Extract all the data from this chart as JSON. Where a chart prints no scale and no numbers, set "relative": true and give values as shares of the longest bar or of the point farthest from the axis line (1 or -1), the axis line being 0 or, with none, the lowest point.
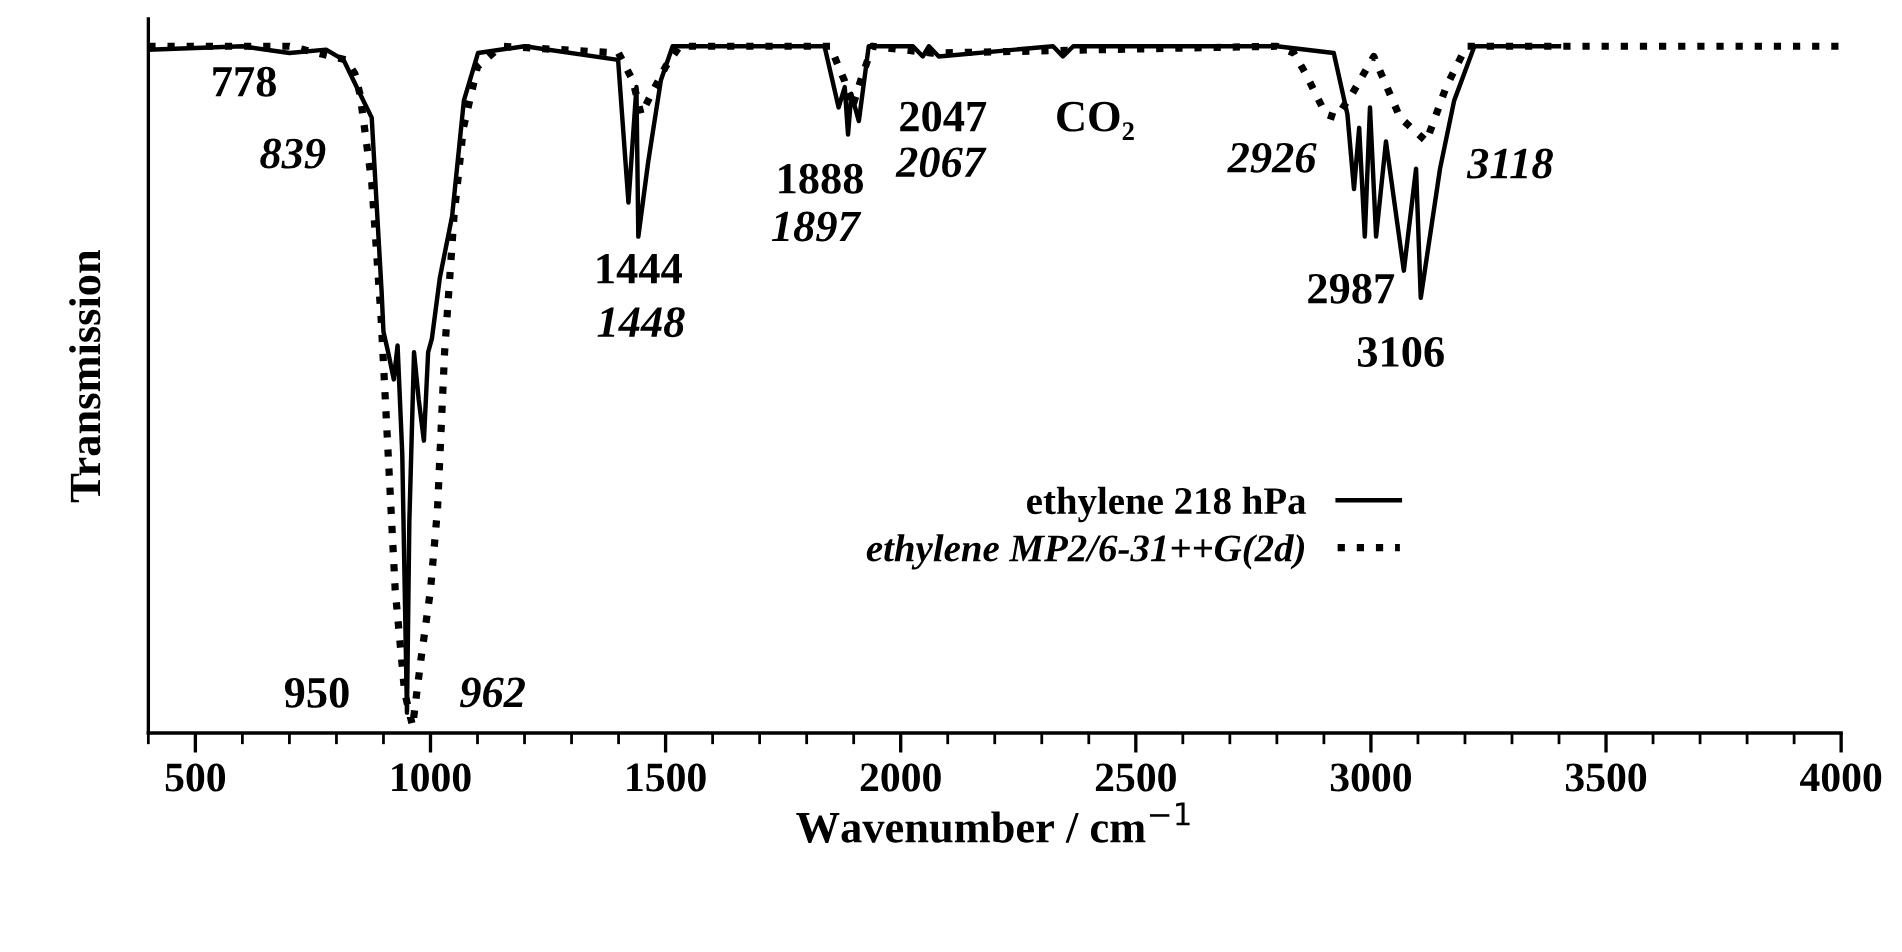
{
  "chart_data": {
    "type": "line",
    "relative": true,
    "xlabel": "Wavenumber / cm$^{−1}$",
    "ylabel": "Transmission",
    "xlim": [
      400,
      4000
    ],
    "xticks": [
      500,
      1000,
      1500,
      2000,
      2500,
      3000,
      3500,
      4000
    ],
    "tick_labels": "x",
    "grid": false,
    "legend": "bottom right",
    "series": [
      {
        "name": "ethylene 218 hPa",
        "color": "#000000",
        "line_style": "solid",
        "x": [
          400,
          600,
          700,
          778,
          815,
          850,
          875,
          896,
          900,
          910,
          922,
          930,
          940,
          950,
          955,
          965,
          975,
          986,
          995,
          1003,
          1020,
          1046,
          1071,
          1101,
          1200,
          1399,
          1421,
          1438,
          1442,
          1463,
          1490,
          1515,
          1700,
          1838,
          1868,
          1881,
          1888,
          1895,
          1911,
          1932,
          2026,
          2047,
          2060,
          2081,
          2324,
          2345,
          2367,
          2800,
          2921,
          2950,
          2964,
          2975,
          2987,
          2998,
          3011,
          3032,
          3070,
          3096,
          3106,
          3147,
          3177,
          3220,
          3400
        ],
        "values": [
          0.995,
          1.0,
          0.99,
          0.995,
          0.98,
          0.93,
          0.895,
          0.64,
          0.58,
          0.55,
          0.51,
          0.56,
          0.4,
          0.02,
          0.3,
          0.55,
          0.48,
          0.42,
          0.55,
          0.57,
          0.66,
          0.75,
          0.92,
          0.99,
          1.0,
          0.98,
          0.77,
          0.94,
          0.72,
          0.83,
          0.95,
          1.0,
          1.0,
          1.0,
          0.91,
          0.94,
          0.87,
          0.93,
          0.89,
          1.0,
          1.0,
          0.985,
          1.0,
          0.985,
          1.0,
          0.985,
          1.0,
          1.0,
          0.99,
          0.9,
          0.79,
          0.88,
          0.72,
          0.91,
          0.72,
          0.86,
          0.67,
          0.82,
          0.63,
          0.82,
          0.92,
          1.0,
          1.0
        ]
      },
      {
        "name": "ethylene MP2/6-31++G(2d)",
        "color": "#000000",
        "line_style": "dotted",
        "x": [
          400,
          700,
          820,
          839,
          850,
          875,
          895,
          910,
          925,
          945,
          962,
          980,
          1000,
          1015,
          1030,
          1050,
          1070,
          1100,
          1150,
          1400,
          1430,
          1448,
          1470,
          1500,
          1530,
          1850,
          1880,
          1897,
          1915,
          1940,
          2067,
          2800,
          2836,
          2861,
          2904,
          2926,
          2960,
          3006,
          3062,
          3118,
          3160,
          3203,
          4000
        ],
        "values": [
          1.0,
          1.0,
          0.98,
          0.96,
          0.93,
          0.8,
          0.6,
          0.4,
          0.2,
          0.05,
          0.0,
          0.1,
          0.2,
          0.32,
          0.55,
          0.75,
          0.88,
          0.97,
          1.0,
          0.99,
          0.95,
          0.9,
          0.93,
          0.97,
          1.0,
          1.0,
          0.95,
          0.91,
          0.95,
          1.0,
          0.99,
          1.0,
          0.99,
          0.96,
          0.9,
          0.895,
          0.93,
          0.985,
          0.895,
          0.86,
          0.94,
          1.0,
          1.0
        ]
      }
    ],
    "annotations": [
      {
        "text": "778",
        "x": 778,
        "y": 0.995
      },
      {
        "text": "839",
        "x": 839,
        "y": 0.96
      },
      {
        "text": "950",
        "x": 950,
        "y": 0.02
      },
      {
        "text": "962",
        "x": 962,
        "y": 0.0
      },
      {
        "text": "1444",
        "x": 1442,
        "y": 0.72
      },
      "1448",
      {
        "text": "1888",
        "x": 1888,
        "y": 0.87
      },
      "1897",
      {
        "text": "2047",
        "x": 2047,
        "y": 0.985
      },
      "2067",
      {
        "text": "CO₂",
        "x": 2345,
        "y": 0.985
      },
      {
        "text": "2926",
        "x": 2926,
        "y": 0.895
      },
      {
        "text": "2987",
        "x": 2987,
        "y": 0.72
      },
      {
        "text": "3106",
        "x": 3106,
        "y": 0.63
      },
      {
        "text": "3118",
        "x": 3118,
        "y": 0.86
      }
    ]
  }
}
